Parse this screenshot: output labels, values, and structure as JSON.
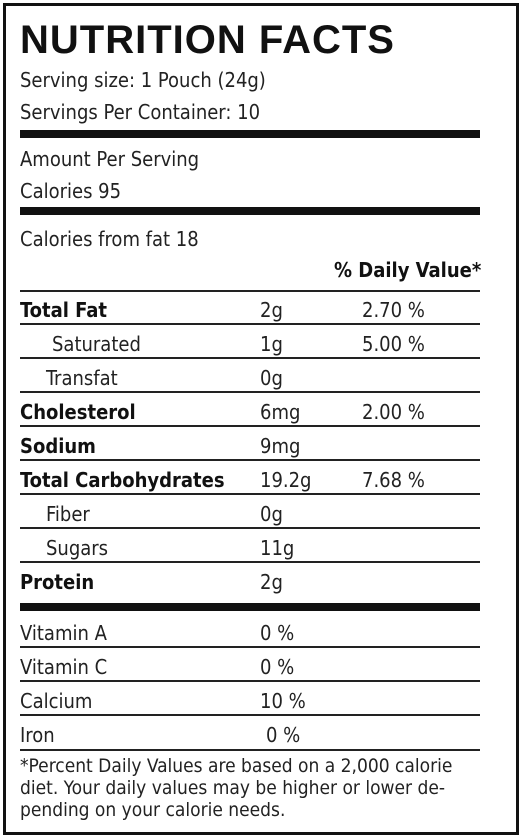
{
  "header": {
    "title": "NUTRITION FACTS",
    "serving_size": "Serving size: 1 Pouch (24g)",
    "servings_per_container": "Servings Per Container: 10"
  },
  "amount": {
    "label": "Amount Per Serving",
    "calories": "Calories  95",
    "calories_from_fat": "Calories from fat 18",
    "dv_heading": "% Daily Value*"
  },
  "nutrients": [
    {
      "name": "Total Fat",
      "amount": "2g",
      "dv": "2.70 %",
      "bold": true
    },
    {
      "name": "Saturated",
      "amount": "1g",
      "dv": "5.00 %",
      "indent": true
    },
    {
      "name": "Transfat",
      "amount": "0g",
      "indent": true
    },
    {
      "name": "Cholesterol",
      "amount": "6mg",
      "dv": "2.00 %",
      "bold": true
    },
    {
      "name": "Sodium",
      "amount": "9mg",
      "bold": true
    },
    {
      "name": "Total Carbohydrates",
      "amount": "19.2g",
      "dv": "7.68 %",
      "bold": true
    },
    {
      "name": "Fiber",
      "amount": "0g",
      "indent": true
    },
    {
      "name": "Sugars",
      "amount": "11g",
      "indent": true
    },
    {
      "name": "Protein",
      "amount": "2g",
      "bold": true
    }
  ],
  "vitamins": [
    {
      "name": "Vitamin A",
      "amount": "0 %"
    },
    {
      "name": "Vitamin C",
      "amount": "0 %"
    },
    {
      "name": "Calcium",
      "amount": "10 %"
    },
    {
      "name": "Iron",
      "amount": "0 %"
    }
  ],
  "footnote": [
    "*Percent Daily Values are based on a 2,000 calorie",
    "diet. Your daily values may be higher or lower de-",
    "pending on your calorie needs."
  ]
}
